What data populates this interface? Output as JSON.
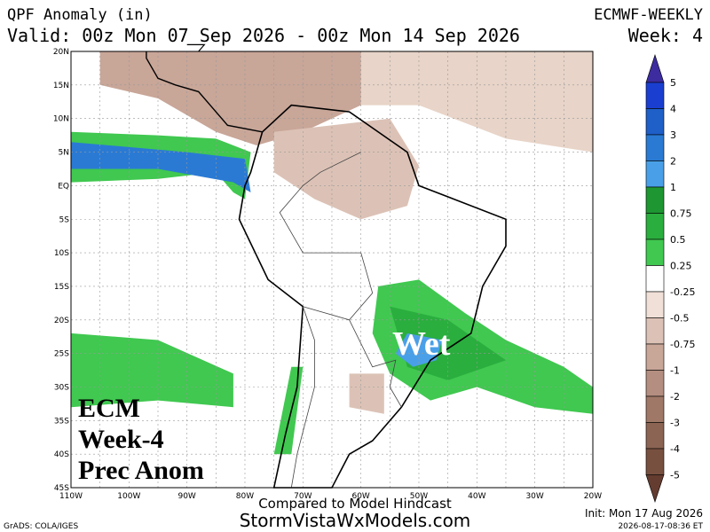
{
  "header": {
    "title": "QPF Anomaly (in)",
    "model": "ECMWF-WEEKLY",
    "valid": "Valid: 00z Mon 07 Sep 2026 - 00z Mon 14 Sep 2026",
    "week": "Week: 4"
  },
  "map": {
    "lat_labels": [
      "20N",
      "15N",
      "10N",
      "5N",
      "EQ",
      "5S",
      "10S",
      "15S",
      "20S",
      "25S",
      "30S",
      "35S",
      "40S",
      "45S"
    ],
    "lon_labels": [
      "110W",
      "100W",
      "90W",
      "80W",
      "70W",
      "60W",
      "50W",
      "40W",
      "30W",
      "20W"
    ],
    "annotations": {
      "wet": "Wet",
      "ecm": "ECM",
      "week": "Week-4",
      "prec": "Prec Anom"
    }
  },
  "colorbar": {
    "labels": [
      "5",
      "4",
      "3",
      "2",
      "1",
      "0.75",
      "0.5",
      "0.25",
      "-0.25",
      "-0.5",
      "-0.75",
      "-1",
      "-2",
      "-3",
      "-4",
      "-5"
    ],
    "colors": [
      "#3c2ca0",
      "#1a3fd0",
      "#1e5fc8",
      "#2a7ad4",
      "#4aa0e8",
      "#1e9632",
      "#2aae3e",
      "#40c850",
      "#ffffff",
      "#f0e0d8",
      "#dcc2b6",
      "#c8a698",
      "#b48e80",
      "#a07868",
      "#8c6454",
      "#785040",
      "#643c30"
    ]
  },
  "footer": {
    "compared": "Compared to Model Hindcast",
    "site": "StormVistaWxModels.com",
    "grads": "GrADS: COLA/IGES",
    "init": "Init: Mon 17 Aug 2026",
    "stamp": "2026-08-17-08:36 ET"
  }
}
